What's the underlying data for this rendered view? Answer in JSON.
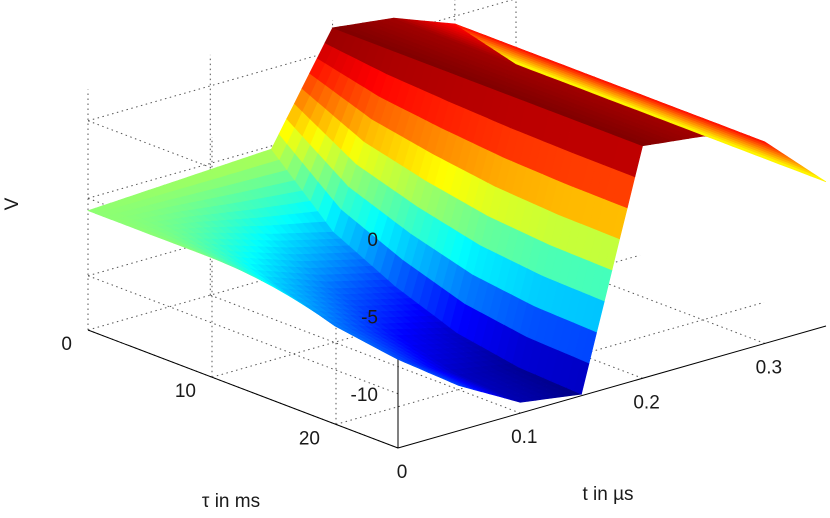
{
  "chart_data": {
    "type": "surface",
    "title": "",
    "zlabel": "V",
    "xlabel": "t in µs",
    "ylabel": "τ in ms",
    "x_ticks": [
      "0",
      "0.1",
      "0.2",
      "0.3"
    ],
    "y_ticks": [
      "0",
      "10",
      "20"
    ],
    "z_ticks": [
      "0",
      "-5",
      "-10"
    ],
    "xlim": [
      0,
      0.35
    ],
    "ylim": [
      0,
      25
    ],
    "zlim": [
      -13.5,
      2
    ],
    "colormap": "jet",
    "grid": true,
    "t_us": [
      0,
      0.05,
      0.1,
      0.15,
      0.2,
      0.25,
      0.3,
      0.35
    ],
    "tau_ms": [
      0,
      5,
      10,
      15,
      20,
      25
    ],
    "V": [
      [
        -5.8,
        -5.6,
        -5.4,
        -5.2,
        1.5,
        1.0,
        -0.5,
        -4.2
      ],
      [
        -5.8,
        -6.8,
        -8.0,
        -9.0,
        1.5,
        1.0,
        -0.5,
        -4.2
      ],
      [
        -5.8,
        -8.5,
        -10.0,
        -11.0,
        1.5,
        1.0,
        -0.5,
        -4.2
      ],
      [
        -5.8,
        -9.8,
        -11.5,
        -12.5,
        1.5,
        1.0,
        -0.5,
        -4.2
      ],
      [
        -5.8,
        -10.4,
        -12.5,
        -13.2,
        1.5,
        1.0,
        -0.5,
        -4.2
      ],
      [
        -5.8,
        -10.6,
        -12.8,
        -13.4,
        1.5,
        1.0,
        -0.5,
        -4.2
      ]
    ]
  }
}
